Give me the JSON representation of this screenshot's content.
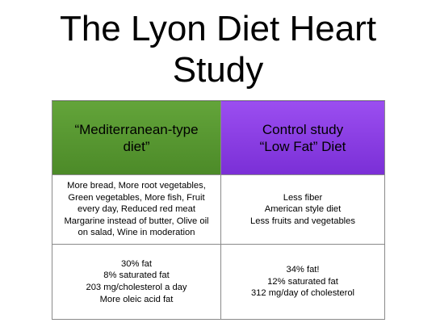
{
  "slide": {
    "title_line1": "The Lyon Diet Heart",
    "title_line2": "Study"
  },
  "table": {
    "header": {
      "mediterranean": "“Mediterranean-type\ndiet”",
      "control": "Control study\n“Low Fat” Diet"
    },
    "food_row": {
      "mediterranean": "More bread, More root vegetables,\nGreen vegetables, More fish, Fruit\nevery day, Reduced red meat\nMargarine instead of butter, Olive oil\non salad, Wine in moderation",
      "control": "Less fiber\nAmerican style diet\nLess fruits and vegetables"
    },
    "nutrient_row": {
      "mediterranean": "30% fat\n8% saturated fat\n203 mg/cholesterol a day\nMore oleic acid fat",
      "control": "34% fat!\n12% saturated fat\n312 mg/day of cholesterol"
    }
  },
  "colors": {
    "mediterranean_header": "#5a9a33",
    "control_header": "#8a3fe6",
    "border": "#8a8a8a"
  }
}
